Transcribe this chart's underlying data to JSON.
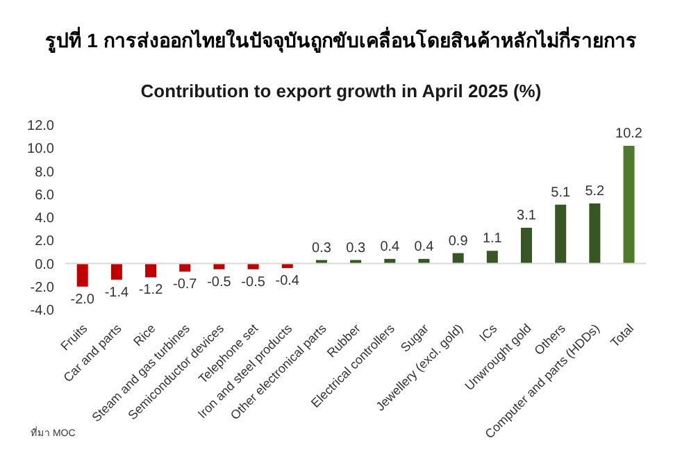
{
  "chart_data": {
    "type": "bar",
    "title": "รูปที่ 1 การส่งออกไทยในปัจจุบันถูกขับเคลื่อนโดยสินค้าหลักไม่กี่รายการ",
    "subtitle": "Contribution to export growth in April 2025 (%)",
    "categories": [
      "Fruits",
      "Car and parts",
      "Rice",
      "Steam and gas turbines",
      "Semiconductor devices",
      "Telephone set",
      "Iron and steel products",
      "Other electronical parts",
      "Rubber",
      "Electrical controllers",
      "Sugar",
      "Jewellery (excl. gold)",
      "ICs",
      "Unwrought gold",
      "Others",
      "Computer and parts (HDDs)",
      "Total"
    ],
    "values": [
      -2.0,
      -1.4,
      -1.2,
      -0.7,
      -0.5,
      -0.5,
      -0.4,
      0.3,
      0.3,
      0.4,
      0.4,
      0.9,
      1.1,
      3.1,
      5.1,
      5.2,
      10.2
    ],
    "value_labels": [
      "-2.0",
      "-1.4",
      "-1.2",
      "-0.7",
      "-0.5",
      "-0.5",
      "-0.4",
      "0.3",
      "0.3",
      "0.4",
      "0.4",
      "0.9",
      "1.1",
      "3.1",
      "5.1",
      "5.2",
      "10.2"
    ],
    "colors": [
      "#c00000",
      "#c00000",
      "#c00000",
      "#c00000",
      "#c00000",
      "#c00000",
      "#c00000",
      "#375623",
      "#375623",
      "#375623",
      "#375623",
      "#375623",
      "#375623",
      "#375623",
      "#375623",
      "#375623",
      "#4f7a2c"
    ],
    "ylim": [
      -4,
      12
    ],
    "yticks": [
      {
        "value": -4,
        "label": "-4.0"
      },
      {
        "value": -2,
        "label": "-2.0"
      },
      {
        "value": 0,
        "label": "0.0"
      },
      {
        "value": 2,
        "label": "2.0"
      },
      {
        "value": 4,
        "label": "4.0"
      },
      {
        "value": 6,
        "label": "6.0"
      },
      {
        "value": 8,
        "label": "8.0"
      },
      {
        "value": 10,
        "label": "10.0"
      },
      {
        "value": 12,
        "label": "12.0"
      }
    ],
    "legend": false,
    "annotations": [
      "ที่มา MOC"
    ]
  }
}
